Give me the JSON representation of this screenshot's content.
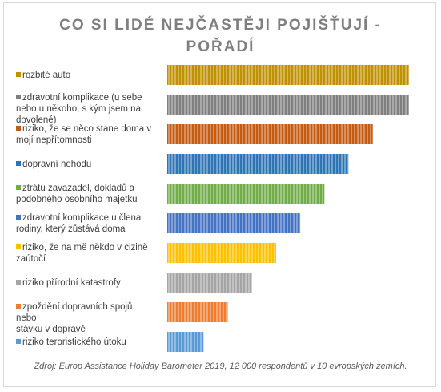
{
  "chart_data": {
    "type": "bar",
    "orientation": "horizontal",
    "title": "CO SI LIDÉ NEJČASTĚJI POJIŠŤUJÍ -\nPOŘADÍ",
    "categories": [
      "rozbité auto",
      "zdravotní komplikace (u sebe\nnebo u někoho, s kým jsem na\ndovolené)",
      "riziko, že se něco stane doma v\nmojí nepřítomnosti",
      "dopravní nehodu",
      "ztrátu zavazadel, dokladů a\npodobného osobního majetku",
      "zdravotní komplikace u člena\nrodiny, který zůstává doma",
      "riziko, že na mě někdo v cizině\nzaútočí",
      "riziko přírodní katastrofy",
      "zpoždění dopravních spojů nebo\nstávku v dopravě",
      "riziko teroristického útoku"
    ],
    "values": [
      10,
      10,
      8.5,
      7.5,
      6.5,
      5.5,
      4.5,
      3.5,
      2.5,
      1.5
    ],
    "colors": [
      "#bf9000",
      "#7f7f7f",
      "#c55a11",
      "#2e75b6",
      "#70ad47",
      "#4472c4",
      "#ffc000",
      "#a5a5a5",
      "#ed7d31",
      "#5b9bd5"
    ],
    "xlim": [
      0,
      10
    ],
    "source": "Zdroj: Europ Assistance Holiday Barometer 2019, 12 000 respondentů v 10 evropských zemích."
  }
}
